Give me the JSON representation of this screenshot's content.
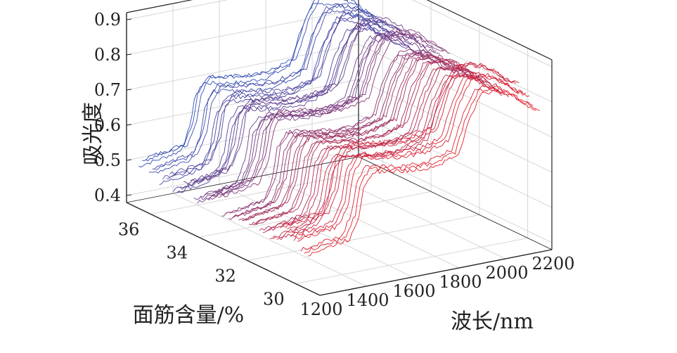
{
  "chart_data": {
    "type": "line",
    "view": "3d-waterfall",
    "zlabel": "吸光度",
    "xlabel": "波长/nm",
    "ylabel": "面筋含量/%",
    "wavelength_ticks": [
      1200,
      1400,
      1600,
      1800,
      2000,
      2200
    ],
    "gluten_ticks": [
      30,
      32,
      34,
      36
    ],
    "absorbance_ticks": [
      0.4,
      0.5,
      0.6,
      0.7,
      0.8,
      0.9
    ],
    "xlim": [
      1200,
      2200
    ],
    "ylim": [
      29,
      37
    ],
    "zlim": [
      0.38,
      0.92
    ],
    "grid": true,
    "color_scale": {
      "low_gluten": "#e8202c",
      "high_gluten": "#2f4fb8"
    },
    "series_count": 50,
    "gluten_range": [
      29.5,
      36.5
    ],
    "spectrum_shape": {
      "wavelength": [
        1200,
        1300,
        1380,
        1420,
        1440,
        1480,
        1560,
        1650,
        1750,
        1850,
        1900,
        1950,
        2000,
        2050,
        2100,
        2150,
        2200
      ],
      "absorbance": [
        0.5,
        0.51,
        0.52,
        0.58,
        0.66,
        0.7,
        0.69,
        0.68,
        0.68,
        0.7,
        0.8,
        0.86,
        0.86,
        0.85,
        0.83,
        0.8,
        0.78
      ]
    }
  }
}
